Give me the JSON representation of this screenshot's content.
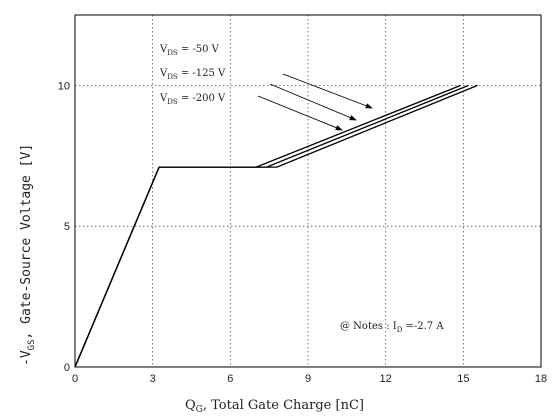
{
  "chart_data": {
    "type": "line",
    "xlabel_main": "Q",
    "xlabel_sub": "G",
    "xlabel_rest": ", Total Gate Charge  [nC]",
    "ylabel_main": "-V",
    "ylabel_sub": "GS",
    "ylabel_rest": ", Gate-Source Voltage  [V]",
    "xlim": [
      0,
      18
    ],
    "ylim": [
      0,
      12.5
    ],
    "xticks": [
      0,
      3,
      6,
      9,
      12,
      15,
      18
    ],
    "yticks": [
      0,
      5,
      10
    ],
    "grid": true,
    "series": [
      {
        "label_main": "V",
        "label_sub": "DS",
        "label_rest": " = -50 V",
        "x": [
          0,
          3.25,
          7.0,
          14.9
        ],
        "y": [
          0,
          7.1,
          7.1,
          10.0
        ]
      },
      {
        "label_main": "V",
        "label_sub": "DS",
        "label_rest": " = -125 V",
        "x": [
          0,
          3.25,
          7.4,
          15.2
        ],
        "y": [
          0,
          7.1,
          7.1,
          10.0
        ]
      },
      {
        "label_main": "V",
        "label_sub": "DS",
        "label_rest": " = -200 V",
        "x": [
          0,
          3.25,
          7.8,
          15.55
        ],
        "y": [
          0,
          7.1,
          7.1,
          10.0
        ]
      }
    ],
    "note_prefix": "@ Notes : I",
    "note_sub": "D",
    "note_rest": " =-2.7 A"
  }
}
